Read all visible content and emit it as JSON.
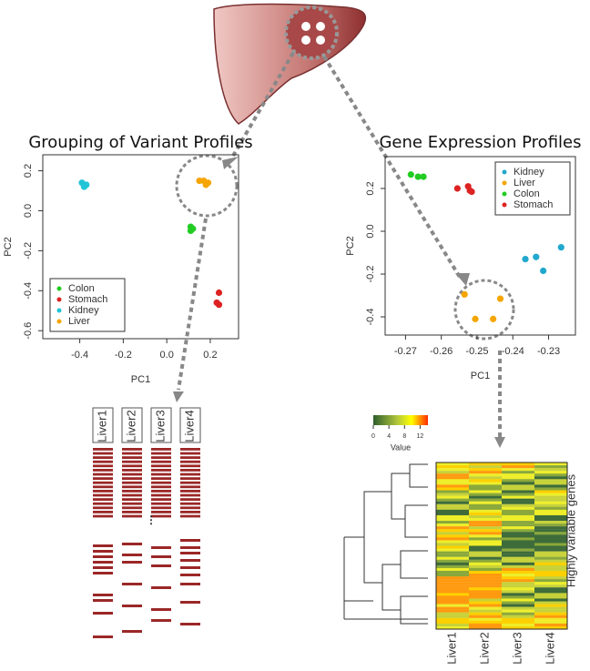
{
  "chart_data": [
    {
      "type": "scatter",
      "title": "Grouping of Variant Profiles",
      "xlabel": "PC1",
      "ylabel": "PC2",
      "xlim": [
        -0.57,
        0.33
      ],
      "ylim": [
        -0.64,
        0.28
      ],
      "xticks": [
        -0.4,
        -0.2,
        {
          "value": 0,
          "label": "0.0"
        },
        0.2
      ],
      "yticks": [
        0.2,
        {
          "value": 0,
          "label": "0.0"
        },
        -0.2,
        -0.4,
        -0.6
      ],
      "legend": "bottom-left",
      "series": [
        {
          "name": "Colon",
          "color": "#22cc22",
          "x": [
            0.11,
            0.11,
            0.12
          ],
          "values": [
            -0.08,
            -0.1,
            -0.09
          ]
        },
        {
          "name": "Stomach",
          "color": "#dd2222",
          "x": [
            0.24,
            0.23,
            0.24
          ],
          "values": [
            -0.41,
            -0.46,
            -0.47
          ]
        },
        {
          "name": "Kidney",
          "color": "#22c4d6",
          "x": [
            -0.39,
            -0.38,
            -0.37,
            -0.38
          ],
          "values": [
            0.14,
            0.13,
            0.13,
            0.12
          ]
        },
        {
          "name": "Liver",
          "color": "#f5a500",
          "x": [
            0.15,
            0.17,
            0.19,
            0.18
          ],
          "values": [
            0.15,
            0.15,
            0.14,
            0.13
          ]
        }
      ]
    },
    {
      "type": "scatter",
      "title": "Gene Expression Profiles",
      "xlabel": "PC1",
      "ylabel": "PC2",
      "xlim": [
        -0.2757,
        -0.2225
      ],
      "ylim": [
        -0.485,
        0.349
      ],
      "xticks": [
        -0.27,
        -0.26,
        -0.25,
        -0.24,
        -0.23
      ],
      "yticks": [
        0.2,
        {
          "value": 0,
          "label": "0.0"
        },
        -0.2,
        -0.4
      ],
      "legend": "top-right",
      "series": [
        {
          "name": "Kidney",
          "color": "#22a8cc",
          "x": [
            -0.2365,
            -0.2335,
            -0.2315,
            -0.2265
          ],
          "values": [
            -0.13,
            -0.12,
            -0.185,
            -0.075
          ]
        },
        {
          "name": "Liver",
          "color": "#f5a500",
          "x": [
            -0.2535,
            -0.2435,
            -0.2505,
            -0.2455
          ],
          "values": [
            -0.295,
            -0.315,
            -0.41,
            -0.41
          ]
        },
        {
          "name": "Colon",
          "color": "#22cc22",
          "x": [
            -0.2685,
            -0.2665,
            -0.265
          ],
          "values": [
            0.265,
            0.255,
            0.255
          ]
        },
        {
          "name": "Stomach",
          "color": "#dd2222",
          "x": [
            -0.2555,
            -0.2525,
            -0.252,
            -0.2515
          ],
          "values": [
            0.2,
            0.21,
            0.19,
            0.185
          ]
        }
      ]
    }
  ],
  "variant_panel": {
    "columns": [
      "Liver1",
      "Liver2",
      "Liver3",
      "Liver4"
    ]
  },
  "heatmap_panel": {
    "columns": [
      "Liver1",
      "Liver2",
      "Liver3",
      "Liver4"
    ],
    "row_label": "Highly variable genes",
    "colorbar": {
      "title": "Value",
      "lim": [
        0,
        14
      ],
      "ticks": [
        0,
        4,
        8,
        12
      ]
    }
  }
}
